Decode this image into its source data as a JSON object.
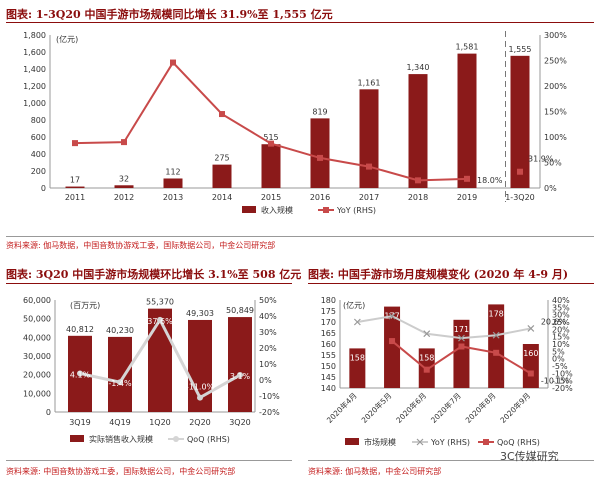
{
  "colors": {
    "bar": "#8b1a1a",
    "line": "#c84a4a",
    "qoq_line": "#d5d5d5",
    "yoy_line": "#cccccc",
    "title": "#8b0d0d",
    "source": "#c42020"
  },
  "top": {
    "title": "图表: 1-3Q20 中国手游市场规模同比增长 31.9%至 1,555 亿元",
    "source": "资料来源: 伽马数据，中国音数协游戏工委，国际数据公司，中金公司研究部"
  },
  "bottom_left": {
    "title": "图表: 3Q20 中国手游市场规模环比增长 3.1%至 508 亿元",
    "source": "资料来源: 中国音数协游戏工委，国际数据公司，中金公司研究部"
  },
  "bottom_right": {
    "title": "图表: 中国手游市场月度规模变化 (2020 年 4-9 月)",
    "source": "资料来源: 伽马数据，中金公司研究部"
  },
  "watermark": "3C传媒研究",
  "chart_data": [
    {
      "type": "bar",
      "categories": [
        "2011",
        "2012",
        "2013",
        "2014",
        "2015",
        "2016",
        "2017",
        "2018",
        "2019",
        "1-3Q20"
      ],
      "unit_label": "(亿元)",
      "series": [
        {
          "name": "收入规模",
          "type": "bar",
          "axis": "left",
          "values": [
            17,
            32,
            112,
            275,
            515,
            819,
            1161,
            1340,
            1581,
            1555
          ],
          "labels": [
            "17",
            "32",
            "112",
            "275",
            "515",
            "819",
            "1,161",
            "1,340",
            "1,581",
            "1,555"
          ]
        },
        {
          "name": "YoY (RHS)",
          "type": "line",
          "axis": "right",
          "values": [
            88,
            90,
            246,
            145,
            87,
            59,
            42,
            15,
            18,
            31.9
          ],
          "labels": [
            "",
            "",
            "",
            "",
            "",
            "",
            "",
            "",
            "18.0%",
            "31.9%"
          ]
        }
      ],
      "ylim": [
        0,
        1800
      ],
      "y_ticks": [
        "0",
        "200",
        "400",
        "600",
        "800",
        "1,000",
        "1,200",
        "1,400",
        "1,600",
        "1,800"
      ],
      "y2lim": [
        0,
        300
      ],
      "y2_ticks": [
        "0%",
        "50%",
        "100%",
        "150%",
        "200%",
        "250%",
        "300%"
      ],
      "legend_position": "bottom"
    },
    {
      "type": "bar",
      "categories": [
        "3Q19",
        "4Q19",
        "1Q20",
        "2Q20",
        "3Q20"
      ],
      "unit_label": "(百万元)",
      "series": [
        {
          "name": "实际销售收入规模",
          "type": "bar",
          "axis": "left",
          "values": [
            40812,
            40230,
            55370,
            49303,
            50849
          ],
          "labels": [
            "40,812",
            "40,230",
            "55,370",
            "49,303",
            "50,849"
          ]
        },
        {
          "name": "QoQ (RHS)",
          "type": "line",
          "axis": "right",
          "values": [
            4.1,
            -1.4,
            37.6,
            -11.0,
            3.1
          ],
          "labels": [
            "4.1%",
            "-1.4%",
            "37.6%",
            "-11.0%",
            "3.1%"
          ]
        }
      ],
      "ylim": [
        0,
        60000
      ],
      "y_ticks": [
        "0",
        "10,000",
        "20,000",
        "30,000",
        "40,000",
        "50,000",
        "60,000"
      ],
      "y2lim": [
        -20,
        50
      ],
      "y2_ticks": [
        "-20%",
        "-10%",
        "0%",
        "10%",
        "20%",
        "30%",
        "40%",
        "50%"
      ],
      "legend_position": "bottom"
    },
    {
      "type": "bar",
      "categories": [
        "2020年4月",
        "2020年5月",
        "2020年6月",
        "2020年7月",
        "2020年8月",
        "2020年9月"
      ],
      "unit_label": "(亿元)",
      "series": [
        {
          "name": "市场规模",
          "type": "bar",
          "axis": "left",
          "values": [
            158,
            177,
            158,
            171,
            178,
            160
          ],
          "labels": [
            "158",
            "177",
            "158",
            "171",
            "178",
            "160"
          ]
        },
        {
          "name": "YoY (RHS)",
          "type": "line",
          "axis": "right",
          "values": [
            25,
            29,
            17,
            14,
            16,
            20.6
          ],
          "labels": [
            "",
            "",
            "",
            "",
            "",
            "20.6%"
          ]
        },
        {
          "name": "QoQ (RHS)",
          "type": "line",
          "axis": "right",
          "values": [
            null,
            12,
            -7.5,
            8.3,
            4,
            -10.1
          ],
          "labels": [
            "",
            "",
            "",
            "",
            "",
            "-10.1%"
          ]
        }
      ],
      "ylim": [
        140,
        180
      ],
      "y_ticks": [
        "140",
        "145",
        "150",
        "155",
        "160",
        "165",
        "170",
        "175",
        "180"
      ],
      "y2lim": [
        -20,
        40
      ],
      "y2_ticks": [
        "-20%",
        "-15%",
        "-10%",
        "-5%",
        "0%",
        "5%",
        "10%",
        "15%",
        "20%",
        "25%",
        "30%",
        "35%",
        "40%"
      ],
      "legend_position": "bottom"
    }
  ]
}
